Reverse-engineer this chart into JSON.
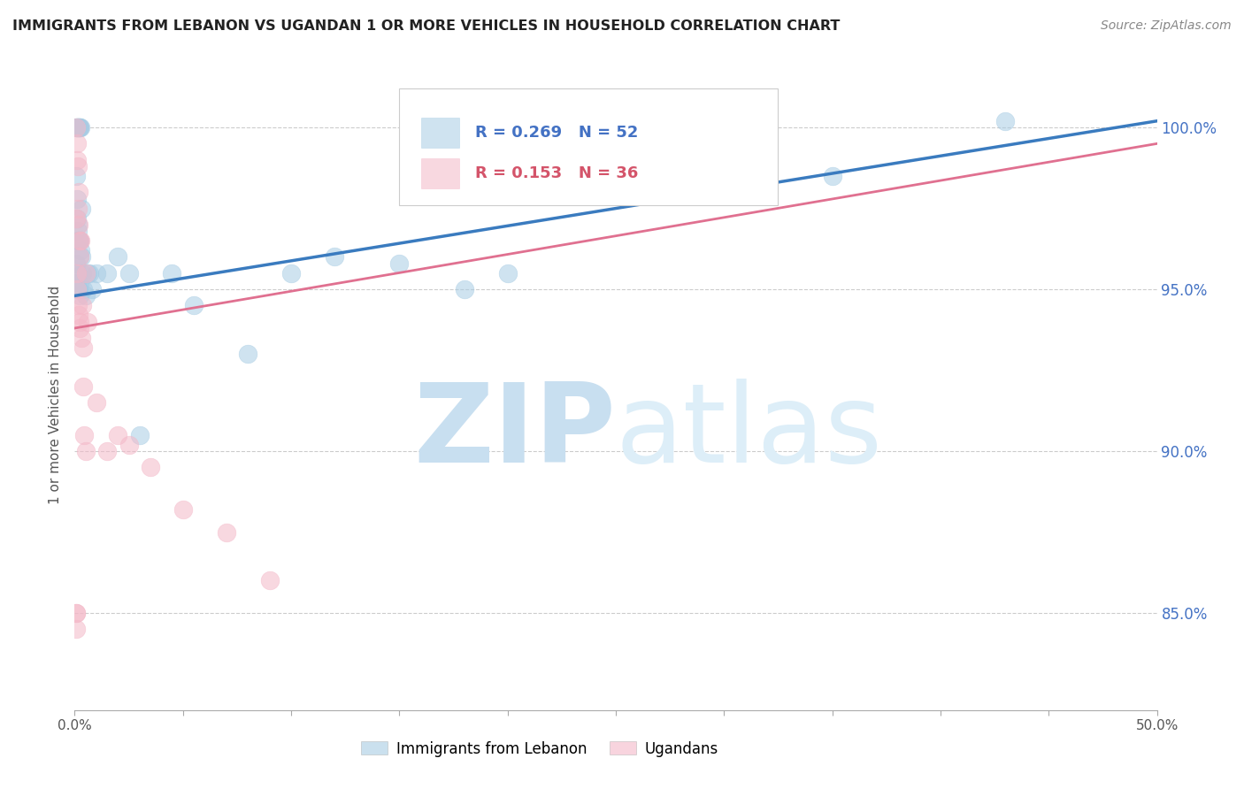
{
  "title": "IMMIGRANTS FROM LEBANON VS UGANDAN 1 OR MORE VEHICLES IN HOUSEHOLD CORRELATION CHART",
  "source": "Source: ZipAtlas.com",
  "ylabel": "1 or more Vehicles in Household",
  "ylabel_right_ticks": [
    85.0,
    90.0,
    95.0,
    100.0
  ],
  "xlim": [
    0.0,
    50.0
  ],
  "ylim": [
    82.0,
    101.5
  ],
  "legend_blue_label": "Immigrants from Lebanon",
  "legend_pink_label": "Ugandans",
  "R_blue": 0.269,
  "N_blue": 52,
  "R_pink": 0.153,
  "N_pink": 36,
  "blue_color": "#a8cce4",
  "pink_color": "#f4b8c8",
  "blue_line_color": "#3a7bbf",
  "pink_line_color": "#e07090",
  "watermark_zip": "ZIP",
  "watermark_atlas": "atlas",
  "watermark_color": "#ddeef8",
  "blue_x": [
    0.08,
    0.1,
    0.12,
    0.14,
    0.16,
    0.18,
    0.2,
    0.22,
    0.25,
    0.28,
    0.08,
    0.1,
    0.12,
    0.14,
    0.16,
    0.18,
    0.2,
    0.22,
    0.25,
    0.28,
    0.08,
    0.1,
    0.12,
    0.14,
    0.16,
    0.2,
    0.22,
    0.25,
    0.3,
    0.35,
    0.4,
    0.5,
    0.6,
    0.7,
    0.8,
    1.0,
    1.5,
    2.0,
    2.5,
    3.0,
    4.5,
    5.5,
    8.0,
    10.0,
    12.0,
    15.0,
    18.0,
    20.0,
    25.0,
    35.0,
    43.0,
    0.3
  ],
  "blue_y": [
    100.0,
    100.0,
    100.0,
    100.0,
    100.0,
    100.0,
    100.0,
    100.0,
    100.0,
    100.0,
    98.5,
    97.8,
    97.2,
    97.0,
    96.8,
    96.5,
    96.5,
    96.5,
    96.0,
    96.2,
    95.8,
    95.5,
    95.2,
    95.5,
    95.0,
    95.0,
    94.8,
    95.2,
    96.0,
    95.5,
    95.0,
    94.8,
    95.5,
    95.5,
    95.0,
    95.5,
    95.5,
    96.0,
    95.5,
    90.5,
    95.5,
    94.5,
    93.0,
    95.5,
    96.0,
    95.8,
    95.0,
    95.5,
    98.5,
    98.5,
    100.2,
    97.5
  ],
  "pink_x": [
    0.08,
    0.1,
    0.12,
    0.14,
    0.16,
    0.18,
    0.2,
    0.22,
    0.25,
    0.28,
    0.08,
    0.1,
    0.12,
    0.14,
    0.18,
    0.22,
    0.25,
    0.3,
    0.35,
    0.4,
    0.5,
    0.6,
    1.0,
    1.5,
    2.0,
    2.5,
    3.5,
    5.0,
    7.0,
    9.0,
    0.05,
    0.05,
    0.4,
    0.45,
    0.5,
    0.08
  ],
  "pink_y": [
    100.0,
    99.5,
    99.0,
    98.8,
    97.5,
    98.0,
    97.0,
    96.5,
    96.0,
    96.5,
    97.2,
    95.5,
    95.0,
    94.5,
    94.2,
    94.0,
    93.8,
    93.5,
    94.5,
    93.2,
    95.5,
    94.0,
    91.5,
    90.0,
    90.5,
    90.2,
    89.5,
    88.2,
    87.5,
    86.0,
    85.0,
    84.5,
    92.0,
    90.5,
    90.0,
    85.0
  ],
  "blue_trend_x": [
    0.0,
    50.0
  ],
  "blue_trend_y": [
    94.8,
    100.2
  ],
  "pink_trend_x": [
    0.0,
    50.0
  ],
  "pink_trend_y": [
    93.8,
    99.5
  ]
}
